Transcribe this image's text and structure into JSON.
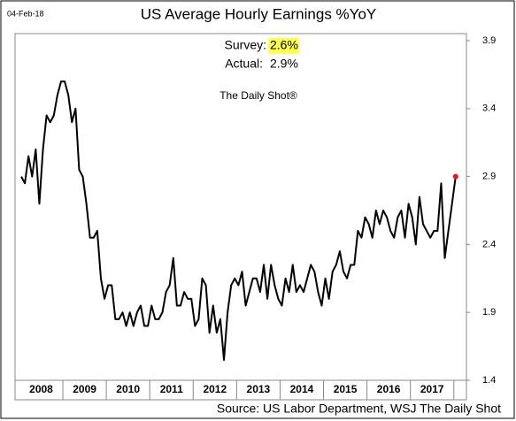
{
  "chart_data": {
    "type": "line",
    "date": "04-Feb-18",
    "title": "US Average Hourly Earnings %YoY",
    "survey_label": "Survey:",
    "survey_value": "2.6%",
    "actual_label": "Actual:",
    "actual_value": "2.9%",
    "brand": "The Daily Shot®",
    "source": "Source: US Labor Department, WSJ The Daily Shot",
    "categories": [
      null,
      null,
      null,
      null,
      null,
      null,
      "2008",
      null,
      null,
      null,
      null,
      null,
      null,
      null,
      null,
      null,
      null,
      null,
      "2009",
      null,
      null,
      null,
      null,
      null,
      null,
      null,
      null,
      null,
      null,
      null,
      "2010",
      null,
      null,
      null,
      null,
      null,
      null,
      null,
      null,
      null,
      null,
      null,
      "2011",
      null,
      null,
      null,
      null,
      null,
      null,
      null,
      null,
      null,
      null,
      null,
      "2012",
      null,
      null,
      null,
      null,
      null,
      null,
      null,
      null,
      null,
      null,
      null,
      "2013",
      null,
      null,
      null,
      null,
      null,
      null,
      null,
      null,
      null,
      null,
      null,
      "2014",
      null,
      null,
      null,
      null,
      null,
      null,
      null,
      null,
      null,
      null,
      null,
      "2015",
      null,
      null,
      null,
      null,
      null,
      null,
      null,
      null,
      null,
      null,
      null,
      "2016",
      null,
      null,
      null,
      null,
      null,
      null,
      null,
      null,
      null,
      null,
      null,
      "2017",
      null,
      null,
      null,
      null,
      null,
      null
    ],
    "values": [
      2.9,
      2.85,
      3.05,
      2.9,
      3.1,
      2.7,
      3.1,
      3.35,
      3.3,
      3.35,
      3.5,
      3.6,
      3.6,
      3.5,
      3.3,
      3.4,
      2.95,
      2.9,
      2.7,
      2.45,
      2.45,
      2.5,
      2.15,
      2.0,
      2.1,
      2.1,
      1.85,
      1.85,
      1.9,
      1.8,
      1.9,
      1.8,
      1.9,
      1.95,
      1.8,
      1.8,
      1.95,
      1.85,
      1.85,
      1.9,
      2.05,
      2.1,
      2.3,
      1.95,
      1.95,
      2.05,
      2.0,
      2.0,
      1.8,
      1.85,
      2.15,
      2.1,
      1.75,
      1.95,
      1.75,
      1.85,
      1.55,
      1.9,
      2.1,
      2.15,
      2.1,
      2.2,
      1.95,
      2.05,
      2.15,
      2.15,
      2.05,
      2.25,
      2.0,
      2.25,
      2.1,
      2.0,
      1.95,
      2.15,
      2.05,
      2.25,
      2.05,
      2.1,
      2.05,
      2.15,
      2.25,
      2.2,
      2.05,
      1.95,
      2.15,
      2.0,
      2.2,
      2.25,
      2.35,
      2.2,
      2.15,
      2.25,
      2.25,
      2.5,
      2.45,
      2.6,
      2.55,
      2.45,
      2.65,
      2.55,
      2.65,
      2.6,
      2.5,
      2.45,
      2.6,
      2.65,
      2.45,
      2.7,
      2.6,
      2.4,
      2.75,
      2.55,
      2.5,
      2.45,
      2.5,
      2.5,
      2.85,
      2.3,
      2.5,
      2.7,
      2.9
    ],
    "color": "#000000",
    "last_point_color": "#e8141e",
    "ylim": [
      1.4,
      3.9
    ],
    "yticks": [
      1.4,
      1.9,
      2.4,
      2.9,
      3.4,
      3.9
    ]
  }
}
